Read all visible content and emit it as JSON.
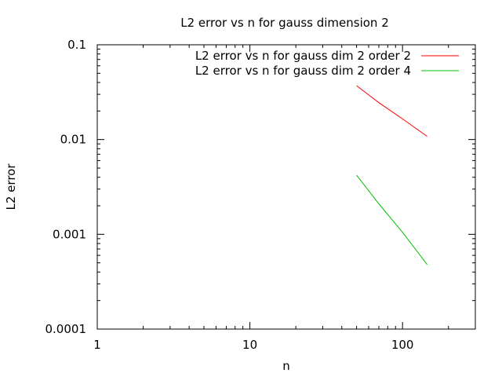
{
  "chart_data": {
    "type": "line",
    "title": "L2 error vs n for gauss dimension 2",
    "xlabel": "n",
    "ylabel": "L2 error",
    "x_scale": "log",
    "y_scale": "log",
    "xlim": [
      1,
      300
    ],
    "ylim": [
      0.0001,
      0.1
    ],
    "x_ticks": [
      1,
      10,
      100
    ],
    "x_tick_labels": [
      "1",
      "10",
      "100"
    ],
    "y_ticks": [
      0.0001,
      0.001,
      0.01,
      0.1
    ],
    "y_tick_labels": [
      "0.0001",
      "0.001",
      "0.01",
      "0.1"
    ],
    "grid": false,
    "legend_position": "top-right",
    "series": [
      {
        "name": "L2 error vs n for gauss dim 2 order 2",
        "color": "#ff0000",
        "x": [
          50,
          70,
          100,
          145
        ],
        "y": [
          0.037,
          0.0245,
          0.0165,
          0.0108
        ]
      },
      {
        "name": "L2 error vs n for gauss dim 2 order 4",
        "color": "#00c000",
        "x": [
          50,
          70,
          100,
          145
        ],
        "y": [
          0.0042,
          0.0021,
          0.00105,
          0.00048
        ]
      }
    ]
  }
}
